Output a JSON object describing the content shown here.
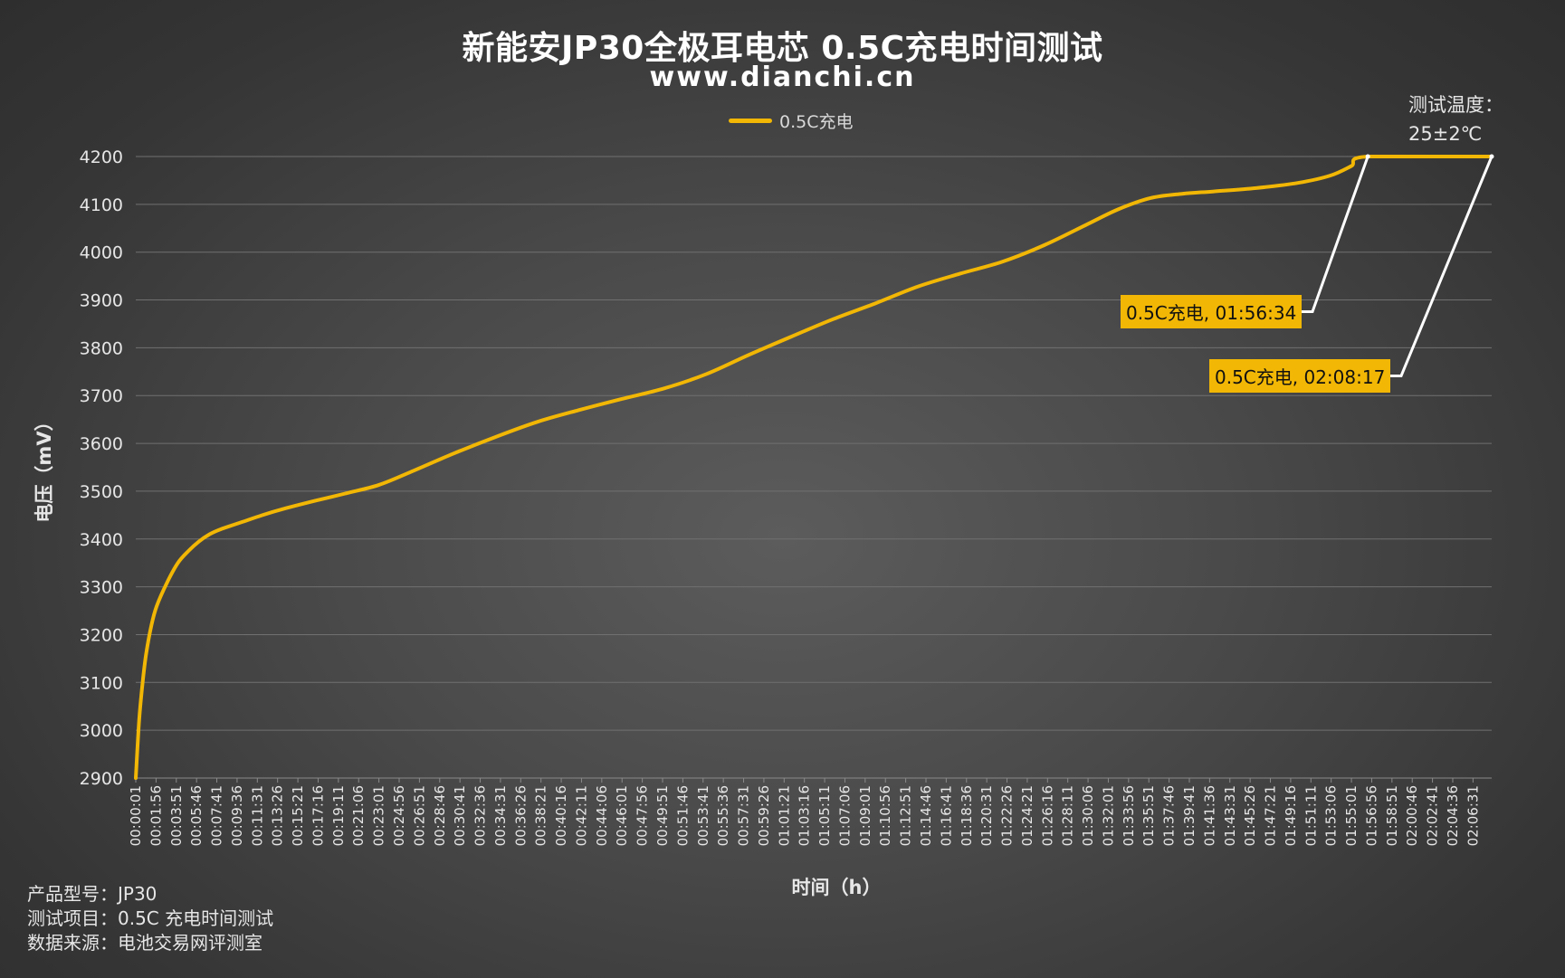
{
  "title": "新能安JP30全极耳电芯 0.5C充电时间测试",
  "subtitle": "www.dianchi.cn",
  "temperature_note": {
    "line1": "测试温度：",
    "line2": "25±2℃"
  },
  "footer": {
    "model": "产品型号：JP30",
    "test_item": "测试项目：0.5C 充电时间测试",
    "source": "数据来源：电池交易网评测室"
  },
  "colors": {
    "series": "#f2b705",
    "grid": "#707070",
    "callout_bg": "#f2b705",
    "leader_line": "#ffffff"
  },
  "chart_data": {
    "type": "line",
    "title": "新能安JP30全极耳电芯 0.5C充电时间测试",
    "xlabel": "时间（h）",
    "ylabel": "电压（mV）",
    "ylim": [
      2900,
      4200
    ],
    "yticks": [
      2900,
      3000,
      3100,
      3200,
      3300,
      3400,
      3500,
      3600,
      3700,
      3800,
      3900,
      4000,
      4100,
      4200
    ],
    "x_tick_labels": [
      "00:00:01",
      "00:01:56",
      "00:03:51",
      "00:05:46",
      "00:07:41",
      "00:09:36",
      "00:11:31",
      "00:13:26",
      "00:15:21",
      "00:17:16",
      "00:19:11",
      "00:21:06",
      "00:23:01",
      "00:24:56",
      "00:26:51",
      "00:28:46",
      "00:30:41",
      "00:32:36",
      "00:34:31",
      "00:36:26",
      "00:38:21",
      "00:40:16",
      "00:42:11",
      "00:44:06",
      "00:46:01",
      "00:47:56",
      "00:49:51",
      "00:51:46",
      "00:53:41",
      "00:55:36",
      "00:57:31",
      "00:59:26",
      "01:01:21",
      "01:03:16",
      "01:05:11",
      "01:07:06",
      "01:09:01",
      "01:10:56",
      "01:12:51",
      "01:14:46",
      "01:16:41",
      "01:18:36",
      "01:20:31",
      "01:22:26",
      "01:24:21",
      "01:26:16",
      "01:28:11",
      "01:30:06",
      "01:32:01",
      "01:33:56",
      "01:35:51",
      "01:37:46",
      "01:39:41",
      "01:41:36",
      "01:43:31",
      "01:45:26",
      "01:47:21",
      "01:49:16",
      "01:51:11",
      "01:53:06",
      "01:55:01",
      "01:56:56",
      "01:58:51",
      "02:00:46",
      "02:02:41",
      "02:04:36",
      "02:06:31"
    ],
    "x_start": "00:00:01",
    "x_end": "02:08:17",
    "grid": true,
    "legend_position": "top-center",
    "series": [
      {
        "name": "0.5C充电",
        "color": "#f2b705",
        "points": [
          [
            "00:00:01",
            2900
          ],
          [
            "00:00:20",
            3020
          ],
          [
            "00:00:40",
            3100
          ],
          [
            "00:01:00",
            3160
          ],
          [
            "00:01:30",
            3220
          ],
          [
            "00:02:00",
            3260
          ],
          [
            "00:03:00",
            3310
          ],
          [
            "00:04:00",
            3350
          ],
          [
            "00:05:00",
            3375
          ],
          [
            "00:06:00",
            3395
          ],
          [
            "00:07:00",
            3410
          ],
          [
            "00:08:00",
            3420
          ],
          [
            "00:10:00",
            3435
          ],
          [
            "00:12:00",
            3450
          ],
          [
            "00:14:00",
            3463
          ],
          [
            "00:17:00",
            3480
          ],
          [
            "00:20:00",
            3496
          ],
          [
            "00:23:00",
            3513
          ],
          [
            "00:26:00",
            3540
          ],
          [
            "00:30:00",
            3578
          ],
          [
            "00:34:00",
            3613
          ],
          [
            "00:38:00",
            3645
          ],
          [
            "00:42:00",
            3670
          ],
          [
            "00:46:00",
            3693
          ],
          [
            "00:50:00",
            3715
          ],
          [
            "00:54:00",
            3745
          ],
          [
            "00:58:00",
            3785
          ],
          [
            "01:02:00",
            3823
          ],
          [
            "01:06:00",
            3860
          ],
          [
            "01:10:00",
            3893
          ],
          [
            "01:14:00",
            3928
          ],
          [
            "01:18:00",
            3955
          ],
          [
            "01:22:00",
            3980
          ],
          [
            "01:26:00",
            4015
          ],
          [
            "01:30:00",
            4058
          ],
          [
            "01:33:00",
            4090
          ],
          [
            "01:36:00",
            4113
          ],
          [
            "01:39:00",
            4122
          ],
          [
            "01:42:00",
            4127
          ],
          [
            "01:46:00",
            4134
          ],
          [
            "01:50:00",
            4145
          ],
          [
            "01:53:00",
            4160
          ],
          [
            "01:55:00",
            4180
          ],
          [
            "01:56:34",
            4200
          ],
          [
            "02:08:17",
            4200
          ]
        ]
      }
    ],
    "annotations": [
      {
        "text": "0.5C充电, 01:56:34",
        "x": "01:56:34",
        "y": 4200
      },
      {
        "text": "0.5C充电, 02:08:17",
        "x": "02:08:17",
        "y": 4200
      }
    ]
  }
}
